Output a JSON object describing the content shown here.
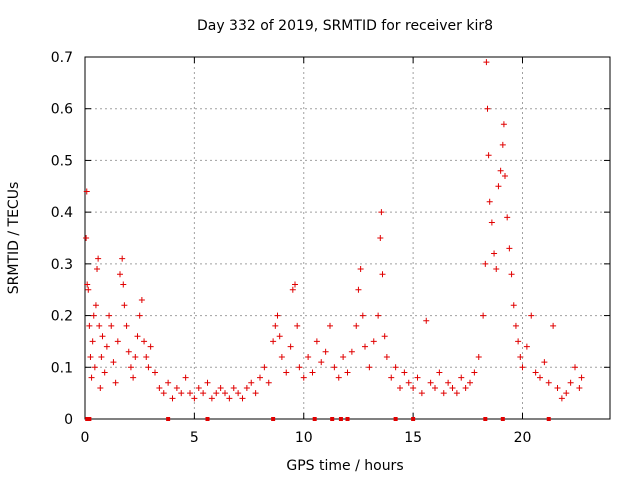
{
  "chart_data": {
    "type": "scatter",
    "title": "Day 332 of 2019, SRMTID for receiver kir8",
    "xlabel": "GPS time / hours",
    "ylabel": "SRMTID / TECUs",
    "xlim": [
      0,
      24
    ],
    "ylim": [
      0,
      0.7
    ],
    "x_ticks": [
      "0",
      "5",
      "10",
      "15",
      "20"
    ],
    "y_ticks": [
      "0",
      "0.1",
      "0.2",
      "0.3",
      "0.4",
      "0.5",
      "0.6",
      "0.7"
    ],
    "grid": true,
    "marker": "+",
    "series_color": "#e00000",
    "series": [
      {
        "name": "SRMTID",
        "points": [
          [
            0.05,
            0.35
          ],
          [
            0.08,
            0.44
          ],
          [
            0.1,
            0.26
          ],
          [
            0.15,
            0.25
          ],
          [
            0.2,
            0.18
          ],
          [
            0.25,
            0.12
          ],
          [
            0.3,
            0.08
          ],
          [
            0.35,
            0.15
          ],
          [
            0.4,
            0.2
          ],
          [
            0.45,
            0.1
          ],
          [
            0.5,
            0.22
          ],
          [
            0.55,
            0.29
          ],
          [
            0.6,
            0.31
          ],
          [
            0.65,
            0.18
          ],
          [
            0.7,
            0.06
          ],
          [
            0.75,
            0.12
          ],
          [
            0.8,
            0.16
          ],
          [
            0.9,
            0.09
          ],
          [
            1.0,
            0.14
          ],
          [
            1.1,
            0.2
          ],
          [
            1.2,
            0.18
          ],
          [
            1.3,
            0.11
          ],
          [
            1.4,
            0.07
          ],
          [
            1.5,
            0.15
          ],
          [
            1.6,
            0.28
          ],
          [
            1.7,
            0.31
          ],
          [
            1.75,
            0.26
          ],
          [
            1.8,
            0.22
          ],
          [
            1.9,
            0.18
          ],
          [
            2.0,
            0.13
          ],
          [
            2.1,
            0.1
          ],
          [
            2.2,
            0.08
          ],
          [
            2.3,
            0.12
          ],
          [
            2.4,
            0.16
          ],
          [
            2.5,
            0.2
          ],
          [
            2.6,
            0.23
          ],
          [
            2.7,
            0.15
          ],
          [
            2.8,
            0.12
          ],
          [
            2.9,
            0.1
          ],
          [
            3.0,
            0.14
          ],
          [
            3.2,
            0.09
          ],
          [
            3.4,
            0.06
          ],
          [
            3.6,
            0.05
          ],
          [
            3.8,
            0.07
          ],
          [
            4.0,
            0.04
          ],
          [
            4.2,
            0.06
          ],
          [
            4.4,
            0.05
          ],
          [
            4.6,
            0.08
          ],
          [
            4.8,
            0.05
          ],
          [
            5.0,
            0.04
          ],
          [
            5.2,
            0.06
          ],
          [
            5.4,
            0.05
          ],
          [
            5.6,
            0.07
          ],
          [
            5.8,
            0.04
          ],
          [
            6.0,
            0.05
          ],
          [
            6.2,
            0.06
          ],
          [
            6.4,
            0.05
          ],
          [
            6.6,
            0.04
          ],
          [
            6.8,
            0.06
          ],
          [
            7.0,
            0.05
          ],
          [
            7.2,
            0.04
          ],
          [
            7.4,
            0.06
          ],
          [
            7.6,
            0.07
          ],
          [
            7.8,
            0.05
          ],
          [
            8.0,
            0.08
          ],
          [
            8.2,
            0.1
          ],
          [
            8.4,
            0.07
          ],
          [
            8.6,
            0.15
          ],
          [
            8.7,
            0.18
          ],
          [
            8.8,
            0.2
          ],
          [
            8.9,
            0.16
          ],
          [
            9.0,
            0.12
          ],
          [
            9.2,
            0.09
          ],
          [
            9.4,
            0.14
          ],
          [
            9.5,
            0.25
          ],
          [
            9.6,
            0.26
          ],
          [
            9.7,
            0.18
          ],
          [
            9.8,
            0.1
          ],
          [
            10.0,
            0.08
          ],
          [
            10.2,
            0.12
          ],
          [
            10.4,
            0.09
          ],
          [
            10.6,
            0.15
          ],
          [
            10.8,
            0.11
          ],
          [
            11.0,
            0.13
          ],
          [
            11.2,
            0.18
          ],
          [
            11.4,
            0.1
          ],
          [
            11.6,
            0.08
          ],
          [
            11.8,
            0.12
          ],
          [
            12.0,
            0.09
          ],
          [
            12.2,
            0.13
          ],
          [
            12.4,
            0.18
          ],
          [
            12.5,
            0.25
          ],
          [
            12.6,
            0.29
          ],
          [
            12.7,
            0.2
          ],
          [
            12.8,
            0.14
          ],
          [
            13.0,
            0.1
          ],
          [
            13.2,
            0.15
          ],
          [
            13.4,
            0.2
          ],
          [
            13.5,
            0.35
          ],
          [
            13.55,
            0.4
          ],
          [
            13.6,
            0.28
          ],
          [
            13.7,
            0.16
          ],
          [
            13.8,
            0.12
          ],
          [
            14.0,
            0.08
          ],
          [
            14.2,
            0.1
          ],
          [
            14.4,
            0.06
          ],
          [
            14.6,
            0.09
          ],
          [
            14.8,
            0.07
          ],
          [
            15.0,
            0.06
          ],
          [
            15.2,
            0.08
          ],
          [
            15.4,
            0.05
          ],
          [
            15.6,
            0.19
          ],
          [
            15.8,
            0.07
          ],
          [
            16.0,
            0.06
          ],
          [
            16.2,
            0.09
          ],
          [
            16.4,
            0.05
          ],
          [
            16.6,
            0.07
          ],
          [
            16.8,
            0.06
          ],
          [
            17.0,
            0.05
          ],
          [
            17.2,
            0.08
          ],
          [
            17.4,
            0.06
          ],
          [
            17.6,
            0.07
          ],
          [
            17.8,
            0.09
          ],
          [
            18.0,
            0.12
          ],
          [
            18.2,
            0.2
          ],
          [
            18.3,
            0.3
          ],
          [
            18.35,
            0.69
          ],
          [
            18.4,
            0.6
          ],
          [
            18.45,
            0.51
          ],
          [
            18.5,
            0.42
          ],
          [
            18.6,
            0.38
          ],
          [
            18.7,
            0.32
          ],
          [
            18.8,
            0.29
          ],
          [
            18.9,
            0.45
          ],
          [
            19.0,
            0.48
          ],
          [
            19.1,
            0.53
          ],
          [
            19.15,
            0.57
          ],
          [
            19.2,
            0.47
          ],
          [
            19.3,
            0.39
          ],
          [
            19.4,
            0.33
          ],
          [
            19.5,
            0.28
          ],
          [
            19.6,
            0.22
          ],
          [
            19.7,
            0.18
          ],
          [
            19.8,
            0.15
          ],
          [
            19.9,
            0.12
          ],
          [
            20.0,
            0.1
          ],
          [
            20.2,
            0.14
          ],
          [
            20.4,
            0.2
          ],
          [
            20.6,
            0.09
          ],
          [
            20.8,
            0.08
          ],
          [
            21.0,
            0.11
          ],
          [
            21.2,
            0.07
          ],
          [
            21.4,
            0.18
          ],
          [
            21.6,
            0.06
          ],
          [
            21.8,
            0.04
          ],
          [
            22.0,
            0.05
          ],
          [
            22.2,
            0.07
          ],
          [
            22.4,
            0.1
          ],
          [
            22.6,
            0.06
          ],
          [
            22.7,
            0.08
          ]
        ],
        "zero_points": [
          0.1,
          0.2,
          3.8,
          5.6,
          8.6,
          10.5,
          11.3,
          11.7,
          12.0,
          14.2,
          15.0,
          18.3,
          19.1,
          21.2
        ]
      }
    ]
  }
}
